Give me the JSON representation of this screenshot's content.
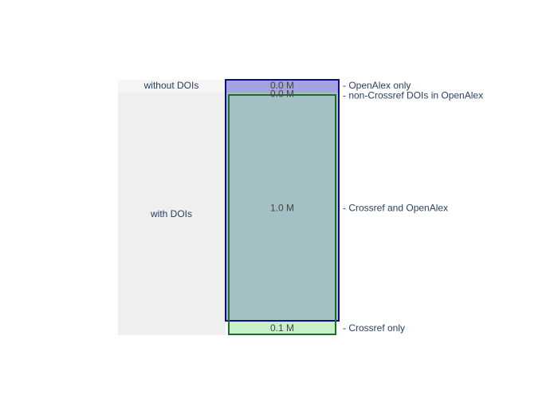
{
  "chart_data": {
    "type": "bar",
    "unit": "M",
    "groups": [
      {
        "name": "without DOIs",
        "value": 0.0
      },
      {
        "name": "with DOIs",
        "value": 1.0
      }
    ],
    "boxes": [
      {
        "name": "OpenAlex",
        "color": "#0d0d8a",
        "segments": [
          {
            "key": "openalex_only",
            "label": "OpenAlex only",
            "value": 0.0,
            "display": "0.0 M",
            "group": "without DOIs",
            "fill": "#a3a3e0"
          },
          {
            "key": "non_crossref",
            "label": "non-Crossref DOIs in OpenAlex",
            "value": 0.0,
            "display": "0.0 M",
            "group": "with DOIs",
            "fill": "#a3c0c5"
          },
          {
            "key": "crossref_openalex",
            "label": "Crossref and OpenAlex",
            "value": 1.0,
            "display": "1.0 M",
            "group": "with DOIs",
            "fill": "#a3c0c5"
          }
        ]
      },
      {
        "name": "Crossref",
        "color": "#1e6b2e",
        "segments": [
          {
            "key": "crossref_openalex",
            "label": "Crossref and OpenAlex",
            "value": 1.0,
            "display": "1.0 M",
            "group": "with DOIs",
            "fill": "#a3c0c5"
          },
          {
            "key": "crossref_only",
            "label": "Crossref only",
            "value": 0.1,
            "display": "0.1 M",
            "group": "with DOIs",
            "fill": "#c8f0c8"
          }
        ]
      }
    ],
    "legend_entries": [
      "- OpenAlex only",
      "- non-Crossref DOIs in OpenAlex",
      "- Crossref and OpenAlex",
      "- Crossref only"
    ],
    "colors": {
      "group_band_without": "#f6f6f6",
      "group_band_with": "#efefef"
    }
  }
}
